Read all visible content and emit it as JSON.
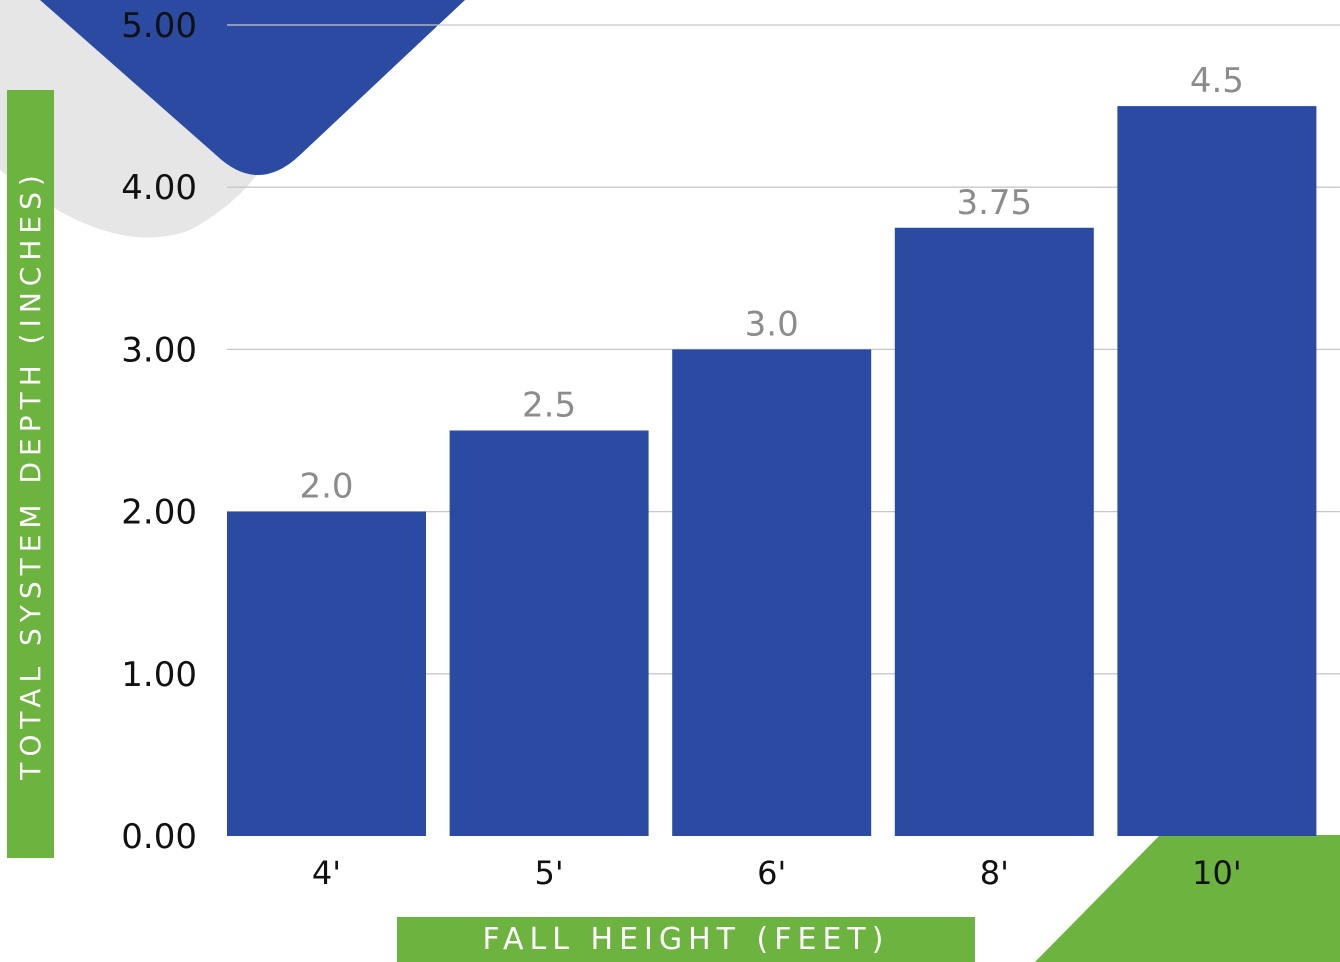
{
  "chart_data": {
    "type": "bar",
    "categories": [
      "4'",
      "5'",
      "6'",
      "8'",
      "10'"
    ],
    "values": [
      2.0,
      2.5,
      3.0,
      3.75,
      4.5
    ],
    "value_labels": [
      "2.0",
      "2.5",
      "3.0",
      "3.75",
      "4.5"
    ],
    "ylim": [
      0,
      5
    ],
    "yticks": [
      "0.00",
      "1.00",
      "2.00",
      "3.00",
      "4.00",
      "5.00"
    ],
    "xlabel": "FALL HEIGHT (FEET)",
    "ylabel": "TOTAL SYSTEM DEPTH (INCHES)",
    "grid": true,
    "legend": "none"
  },
  "colors": {
    "bar": "#2b4aa1",
    "accent_green": "#6db33f",
    "decor_gray": "#e6e6e6",
    "grid": "#c8c8c8",
    "data_label": "#8c8c8c"
  }
}
